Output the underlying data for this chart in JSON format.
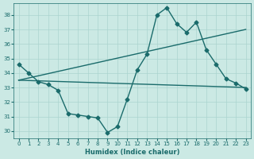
{
  "xlabel": "Humidex (Indice chaleur)",
  "x": [
    0,
    1,
    2,
    3,
    4,
    5,
    6,
    7,
    8,
    9,
    10,
    11,
    12,
    13,
    14,
    15,
    16,
    17,
    18,
    19,
    20,
    21,
    22,
    23
  ],
  "y_main": [
    34.6,
    34.0,
    33.4,
    33.2,
    32.8,
    31.2,
    31.1,
    31.0,
    30.9,
    29.9,
    30.3,
    32.2,
    34.2,
    35.3,
    38.0,
    38.5,
    37.4,
    36.8,
    37.5,
    35.6,
    34.6,
    33.6,
    33.3,
    32.9
  ],
  "trend1_x": [
    0,
    23
  ],
  "trend1_y": [
    33.5,
    33.0
  ],
  "trend2_x": [
    0,
    23
  ],
  "trend2_y": [
    33.5,
    37.0
  ],
  "bg_color": "#cbe9e4",
  "line_color": "#1a6b6b",
  "grid_color": "#aad4cf",
  "ylim": [
    29.5,
    38.8
  ],
  "xlim": [
    -0.5,
    23.5
  ],
  "yticks": [
    30,
    31,
    32,
    33,
    34,
    35,
    36,
    37,
    38
  ],
  "xticks": [
    0,
    1,
    2,
    3,
    4,
    5,
    6,
    7,
    8,
    9,
    10,
    11,
    12,
    13,
    14,
    15,
    16,
    17,
    18,
    19,
    20,
    21,
    22,
    23
  ]
}
